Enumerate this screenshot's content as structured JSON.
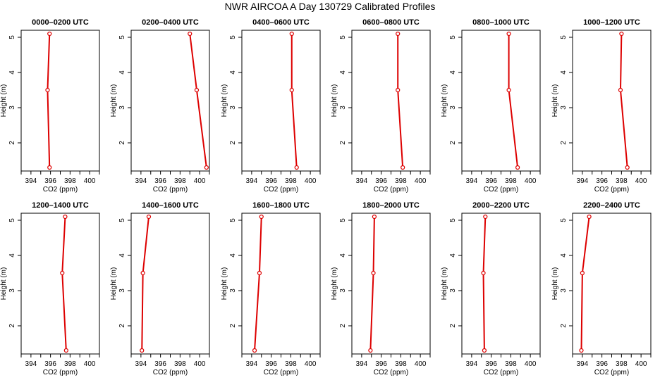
{
  "title": "NWR AIRCOA A  Day 130729  Calibrated Profiles",
  "chart_data": [
    {
      "type": "line",
      "title": "0000–0200 UTC",
      "xlabel": "CO2 (ppm)",
      "ylabel": "Height (m)",
      "xlim": [
        393,
        401
      ],
      "ylim": [
        1.2,
        5.2
      ],
      "x_ticks": [
        394,
        396,
        398,
        400
      ],
      "y_ticks": [
        2,
        3,
        4,
        5
      ],
      "series": [
        {
          "x": [
            395.9,
            395.7,
            395.9
          ],
          "y": [
            1.3,
            3.5,
            5.1
          ]
        }
      ]
    },
    {
      "type": "line",
      "title": "0200–0400 UTC",
      "xlabel": "CO2 (ppm)",
      "ylabel": "Height (m)",
      "xlim": [
        393,
        401
      ],
      "ylim": [
        1.2,
        5.2
      ],
      "x_ticks": [
        394,
        396,
        398,
        400
      ],
      "y_ticks": [
        2,
        3,
        4,
        5
      ],
      "series": [
        {
          "x": [
            400.7,
            399.7,
            399.0
          ],
          "y": [
            1.3,
            3.5,
            5.1
          ]
        }
      ]
    },
    {
      "type": "line",
      "title": "0400–0600 UTC",
      "xlabel": "CO2 (ppm)",
      "ylabel": "Height (m)",
      "xlim": [
        393,
        401
      ],
      "ylim": [
        1.2,
        5.2
      ],
      "x_ticks": [
        394,
        396,
        398,
        400
      ],
      "y_ticks": [
        2,
        3,
        4,
        5
      ],
      "series": [
        {
          "x": [
            398.6,
            398.1,
            398.1
          ],
          "y": [
            1.3,
            3.5,
            5.1
          ]
        }
      ]
    },
    {
      "type": "line",
      "title": "0600–0800 UTC",
      "xlabel": "CO2 (ppm)",
      "ylabel": "Height (m)",
      "xlim": [
        393,
        401
      ],
      "ylim": [
        1.2,
        5.2
      ],
      "x_ticks": [
        394,
        396,
        398,
        400
      ],
      "y_ticks": [
        2,
        3,
        4,
        5
      ],
      "series": [
        {
          "x": [
            398.2,
            397.7,
            397.7
          ],
          "y": [
            1.3,
            3.5,
            5.1
          ]
        }
      ]
    },
    {
      "type": "line",
      "title": "0800–1000 UTC",
      "xlabel": "CO2 (ppm)",
      "ylabel": "Height (m)",
      "xlim": [
        393,
        401
      ],
      "ylim": [
        1.2,
        5.2
      ],
      "x_ticks": [
        394,
        396,
        398,
        400
      ],
      "y_ticks": [
        2,
        3,
        4,
        5
      ],
      "series": [
        {
          "x": [
            398.7,
            397.8,
            397.8
          ],
          "y": [
            1.3,
            3.5,
            5.1
          ]
        }
      ]
    },
    {
      "type": "line",
      "title": "1000–1200 UTC",
      "xlabel": "CO2 (ppm)",
      "ylabel": "Height (m)",
      "xlim": [
        393,
        401
      ],
      "ylim": [
        1.2,
        5.2
      ],
      "x_ticks": [
        394,
        396,
        398,
        400
      ],
      "y_ticks": [
        2,
        3,
        4,
        5
      ],
      "series": [
        {
          "x": [
            398.6,
            397.9,
            398.0
          ],
          "y": [
            1.3,
            3.5,
            5.1
          ]
        }
      ]
    },
    {
      "type": "line",
      "title": "1200–1400 UTC",
      "xlabel": "CO2 (ppm)",
      "ylabel": "Height (m)",
      "xlim": [
        393,
        401
      ],
      "ylim": [
        1.2,
        5.2
      ],
      "x_ticks": [
        394,
        396,
        398,
        400
      ],
      "y_ticks": [
        2,
        3,
        4,
        5
      ],
      "series": [
        {
          "x": [
            397.6,
            397.2,
            397.5
          ],
          "y": [
            1.3,
            3.5,
            5.1
          ]
        }
      ]
    },
    {
      "type": "line",
      "title": "1400–1600 UTC",
      "xlabel": "CO2 (ppm)",
      "ylabel": "Height (m)",
      "xlim": [
        393,
        401
      ],
      "ylim": [
        1.2,
        5.2
      ],
      "x_ticks": [
        394,
        396,
        398,
        400
      ],
      "y_ticks": [
        2,
        3,
        4,
        5
      ],
      "series": [
        {
          "x": [
            394.1,
            394.2,
            394.8
          ],
          "y": [
            1.3,
            3.5,
            5.1
          ]
        }
      ]
    },
    {
      "type": "line",
      "title": "1600–1800 UTC",
      "xlabel": "CO2 (ppm)",
      "ylabel": "Height (m)",
      "xlim": [
        393,
        401
      ],
      "ylim": [
        1.2,
        5.2
      ],
      "x_ticks": [
        394,
        396,
        398,
        400
      ],
      "y_ticks": [
        2,
        3,
        4,
        5
      ],
      "series": [
        {
          "x": [
            394.3,
            394.8,
            395.0
          ],
          "y": [
            1.3,
            3.5,
            5.1
          ]
        }
      ]
    },
    {
      "type": "line",
      "title": "1800–2000 UTC",
      "xlabel": "CO2 (ppm)",
      "ylabel": "Height (m)",
      "xlim": [
        393,
        401
      ],
      "ylim": [
        1.2,
        5.2
      ],
      "x_ticks": [
        394,
        396,
        398,
        400
      ],
      "y_ticks": [
        2,
        3,
        4,
        5
      ],
      "series": [
        {
          "x": [
            394.9,
            395.2,
            395.3
          ],
          "y": [
            1.3,
            3.5,
            5.1
          ]
        }
      ]
    },
    {
      "type": "line",
      "title": "2000–2200 UTC",
      "xlabel": "CO2 (ppm)",
      "ylabel": "Height (m)",
      "xlim": [
        393,
        401
      ],
      "ylim": [
        1.2,
        5.2
      ],
      "x_ticks": [
        394,
        396,
        398,
        400
      ],
      "y_ticks": [
        2,
        3,
        4,
        5
      ],
      "series": [
        {
          "x": [
            395.3,
            395.2,
            395.4
          ],
          "y": [
            1.3,
            3.5,
            5.1
          ]
        }
      ]
    },
    {
      "type": "line",
      "title": "2200–2400 UTC",
      "xlabel": "CO2 (ppm)",
      "ylabel": "Height (m)",
      "xlim": [
        393,
        401
      ],
      "ylim": [
        1.2,
        5.2
      ],
      "x_ticks": [
        394,
        396,
        398,
        400
      ],
      "y_ticks": [
        2,
        3,
        4,
        5
      ],
      "series": [
        {
          "x": [
            393.9,
            394.0,
            394.7
          ],
          "y": [
            1.3,
            3.5,
            5.1
          ]
        }
      ]
    }
  ]
}
